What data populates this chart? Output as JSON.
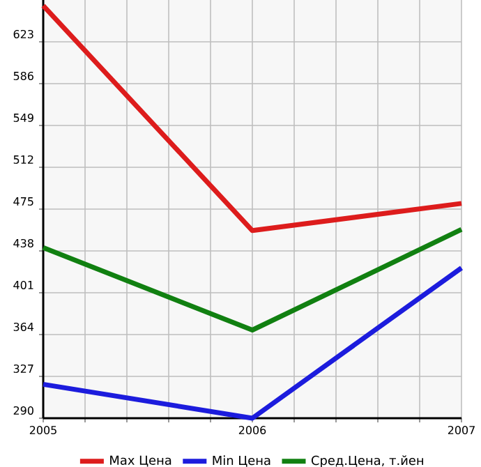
{
  "chart_data": {
    "type": "line",
    "x": [
      2005,
      2006,
      2007
    ],
    "series": [
      {
        "name": "Max Цена",
        "color": "#dd1c1c",
        "values": [
          655,
          456,
          480
        ]
      },
      {
        "name": "Min Цена",
        "color": "#1c1cdd",
        "values": [
          320,
          290,
          423
        ]
      },
      {
        "name": "Сред.Цена, т.йен",
        "color": "#118011",
        "values": [
          441,
          368,
          457
        ]
      }
    ],
    "xlim": [
      2005,
      2007
    ],
    "xticks": [
      2005,
      2006,
      2007
    ],
    "ylim": [
      290,
      660
    ],
    "yticks": [
      290,
      327,
      364,
      401,
      438,
      475,
      512,
      549,
      586,
      623
    ],
    "grid": true,
    "legend": "bottom",
    "marker": "none",
    "line_style": "solid"
  }
}
